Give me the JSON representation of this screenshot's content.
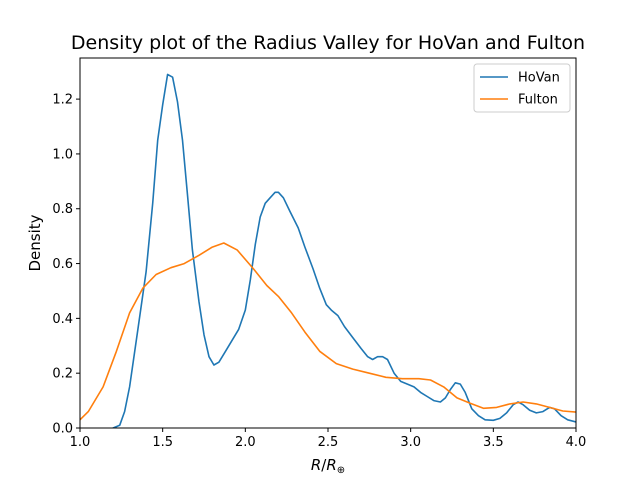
{
  "chart_data": {
    "type": "line",
    "title": "Density plot of the Radius Valley for HoVan and Fulton",
    "xlabel": "R/R⊕",
    "ylabel": "Density",
    "xlim": [
      1.0,
      4.0
    ],
    "ylim": [
      0.0,
      1.35
    ],
    "x_ticks": [
      "1.0",
      "1.5",
      "2.0",
      "2.5",
      "3.0",
      "3.5",
      "4.0"
    ],
    "y_ticks": [
      "0.0",
      "0.2",
      "0.4",
      "0.6",
      "0.8",
      "1.0",
      "1.2"
    ],
    "grid": false,
    "legend_position": "top-right",
    "series": [
      {
        "name": "HoVan",
        "color": "#1f77b4",
        "points": [
          [
            1.2,
            0.0
          ],
          [
            1.24,
            0.01
          ],
          [
            1.27,
            0.06
          ],
          [
            1.3,
            0.15
          ],
          [
            1.35,
            0.36
          ],
          [
            1.4,
            0.57
          ],
          [
            1.44,
            0.82
          ],
          [
            1.47,
            1.05
          ],
          [
            1.5,
            1.18
          ],
          [
            1.53,
            1.29
          ],
          [
            1.56,
            1.28
          ],
          [
            1.59,
            1.19
          ],
          [
            1.62,
            1.05
          ],
          [
            1.65,
            0.85
          ],
          [
            1.68,
            0.65
          ],
          [
            1.72,
            0.46
          ],
          [
            1.75,
            0.34
          ],
          [
            1.78,
            0.26
          ],
          [
            1.81,
            0.23
          ],
          [
            1.84,
            0.24
          ],
          [
            1.88,
            0.28
          ],
          [
            1.92,
            0.32
          ],
          [
            1.96,
            0.36
          ],
          [
            2.0,
            0.43
          ],
          [
            2.03,
            0.54
          ],
          [
            2.06,
            0.67
          ],
          [
            2.09,
            0.77
          ],
          [
            2.12,
            0.82
          ],
          [
            2.15,
            0.84
          ],
          [
            2.18,
            0.86
          ],
          [
            2.2,
            0.86
          ],
          [
            2.23,
            0.84
          ],
          [
            2.27,
            0.79
          ],
          [
            2.32,
            0.73
          ],
          [
            2.36,
            0.66
          ],
          [
            2.41,
            0.58
          ],
          [
            2.45,
            0.51
          ],
          [
            2.49,
            0.45
          ],
          [
            2.52,
            0.43
          ],
          [
            2.56,
            0.41
          ],
          [
            2.6,
            0.37
          ],
          [
            2.65,
            0.33
          ],
          [
            2.7,
            0.29
          ],
          [
            2.74,
            0.26
          ],
          [
            2.77,
            0.25
          ],
          [
            2.8,
            0.26
          ],
          [
            2.83,
            0.26
          ],
          [
            2.86,
            0.25
          ],
          [
            2.9,
            0.2
          ],
          [
            2.94,
            0.17
          ],
          [
            2.98,
            0.16
          ],
          [
            3.02,
            0.15
          ],
          [
            3.06,
            0.13
          ],
          [
            3.1,
            0.115
          ],
          [
            3.14,
            0.1
          ],
          [
            3.18,
            0.095
          ],
          [
            3.21,
            0.11
          ],
          [
            3.24,
            0.14
          ],
          [
            3.27,
            0.165
          ],
          [
            3.3,
            0.16
          ],
          [
            3.33,
            0.13
          ],
          [
            3.37,
            0.07
          ],
          [
            3.41,
            0.045
          ],
          [
            3.45,
            0.03
          ],
          [
            3.5,
            0.028
          ],
          [
            3.54,
            0.035
          ],
          [
            3.58,
            0.055
          ],
          [
            3.62,
            0.085
          ],
          [
            3.65,
            0.095
          ],
          [
            3.68,
            0.085
          ],
          [
            3.72,
            0.065
          ],
          [
            3.76,
            0.055
          ],
          [
            3.8,
            0.06
          ],
          [
            3.84,
            0.075
          ],
          [
            3.87,
            0.07
          ],
          [
            3.91,
            0.045
          ],
          [
            3.95,
            0.03
          ],
          [
            4.0,
            0.022
          ]
        ]
      },
      {
        "name": "Fulton",
        "color": "#ff7f0e",
        "points": [
          [
            1.0,
            0.03
          ],
          [
            1.05,
            0.06
          ],
          [
            1.14,
            0.15
          ],
          [
            1.22,
            0.28
          ],
          [
            1.3,
            0.42
          ],
          [
            1.38,
            0.51
          ],
          [
            1.46,
            0.56
          ],
          [
            1.55,
            0.585
          ],
          [
            1.63,
            0.6
          ],
          [
            1.72,
            0.63
          ],
          [
            1.8,
            0.66
          ],
          [
            1.87,
            0.675
          ],
          [
            1.95,
            0.65
          ],
          [
            2.05,
            0.58
          ],
          [
            2.13,
            0.52
          ],
          [
            2.2,
            0.48
          ],
          [
            2.28,
            0.42
          ],
          [
            2.36,
            0.35
          ],
          [
            2.45,
            0.28
          ],
          [
            2.55,
            0.235
          ],
          [
            2.65,
            0.215
          ],
          [
            2.75,
            0.2
          ],
          [
            2.85,
            0.185
          ],
          [
            2.95,
            0.18
          ],
          [
            3.05,
            0.18
          ],
          [
            3.12,
            0.175
          ],
          [
            3.2,
            0.15
          ],
          [
            3.28,
            0.11
          ],
          [
            3.36,
            0.09
          ],
          [
            3.44,
            0.072
          ],
          [
            3.52,
            0.075
          ],
          [
            3.6,
            0.088
          ],
          [
            3.68,
            0.095
          ],
          [
            3.76,
            0.088
          ],
          [
            3.84,
            0.075
          ],
          [
            3.92,
            0.062
          ],
          [
            4.0,
            0.058
          ]
        ]
      }
    ]
  }
}
